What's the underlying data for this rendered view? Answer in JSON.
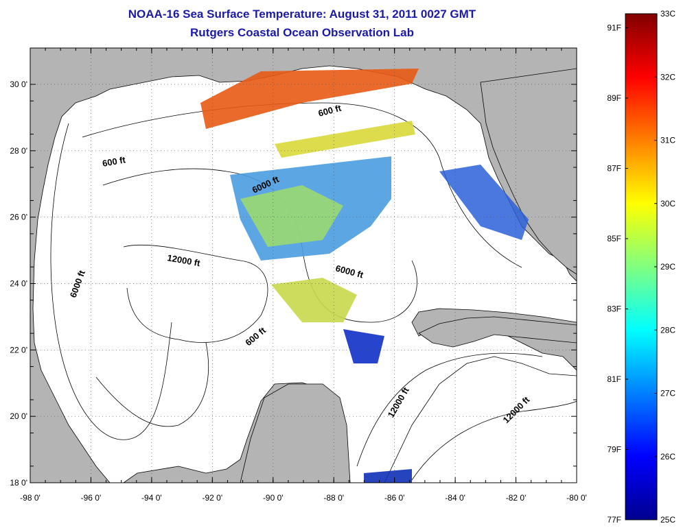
{
  "title": "NOAA-16 Sea Surface Temperature:  August 31, 2011 0027 GMT",
  "subtitle": "Rutgers Coastal Ocean Observation Lab",
  "map": {
    "lat_ticks": [
      "30 0'",
      "28 0'",
      "26 0'",
      "24 0'",
      "22 0'",
      "20 0'",
      "18 0'"
    ],
    "lon_ticks": [
      "-98 0'",
      "-96 0'",
      "-94 0'",
      "-92 0'",
      "-90 0'",
      "-88 0'",
      "-86 0'",
      "-84 0'",
      "-82 0'",
      "-80 0'"
    ],
    "contour_labels": [
      "600 ft",
      "600 ft",
      "600 ft",
      "6000 ft",
      "6000 ft",
      "6000 ft",
      "12000 ft",
      "12000 ft",
      "12000 ft"
    ],
    "land_color": "#b4b4b4",
    "water_color": "#ffffff"
  },
  "colorbar": {
    "celsius": [
      "33C",
      "32C",
      "31C",
      "30C",
      "29C",
      "28C",
      "27C",
      "26C",
      "25C"
    ],
    "fahrenheit": [
      "91F",
      "89F",
      "87F",
      "85F",
      "83F",
      "81F",
      "79F",
      "77F"
    ],
    "range_c": [
      25,
      33
    ],
    "colormap": "jet"
  }
}
